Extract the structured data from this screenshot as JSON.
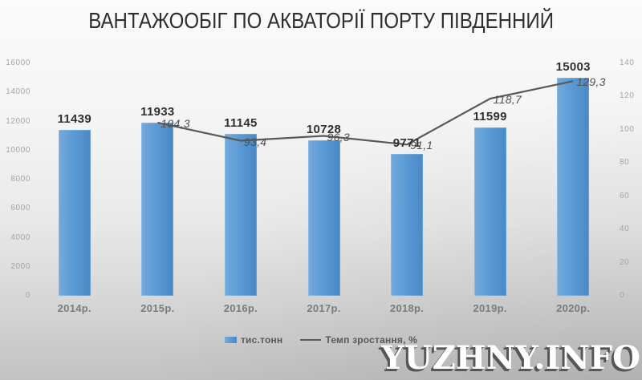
{
  "title": "ВАНТАЖООБІГ ПО АКВАТОРІЇ ПОРТУ ПІВДЕННИЙ",
  "watermark": "YUZHNY.INFO",
  "legend": {
    "bars_label": "тис.тонн",
    "line_label": "Темп зростання, %"
  },
  "colors": {
    "bar": "#5b9bd5",
    "bar_light": "#74aadc",
    "bar_dark": "#4a88c6",
    "line": "#595959",
    "bar_value_label": "#303030",
    "line_value_label": "#4f4f4f",
    "axis_tick": "#a4a4a4",
    "category_label": "#7b7b7b"
  },
  "chart_data": {
    "type": "bar",
    "subtype": "bar+line combo, secondary right axis",
    "title": "ВАНТАЖООБІГ ПО АКВАТОРІЇ ПОРТУ ПІВДЕННИЙ",
    "categories": [
      "2014р.",
      "2015р.",
      "2016р.",
      "2017р.",
      "2018р.",
      "2019р.",
      "2020р."
    ],
    "series": [
      {
        "name": "тис.тонн",
        "type": "bar",
        "axis": "left",
        "values": [
          11439,
          11933,
          11145,
          10728,
          9771,
          11599,
          15003
        ],
        "labels": [
          "11439",
          "11933",
          "11145",
          "10728",
          "9771",
          "11599",
          "15003"
        ]
      },
      {
        "name": "Темп зростання, %",
        "type": "line",
        "axis": "right",
        "values": [
          null,
          104.3,
          93.4,
          96.3,
          91.1,
          118.7,
          129.3
        ],
        "labels": [
          "",
          "104,3",
          "93,4",
          "96,3",
          "91,1",
          "118,7",
          "129,3"
        ]
      }
    ],
    "left_axis": {
      "min": 0,
      "max": 16000,
      "step": 2000,
      "ticks": [
        "0",
        "2000",
        "4000",
        "6000",
        "8000",
        "10000",
        "12000",
        "14000",
        "16000"
      ]
    },
    "right_axis": {
      "min": 0,
      "max": 140,
      "step": 20,
      "ticks": [
        "0",
        "20",
        "40",
        "60",
        "80",
        "100",
        "120",
        "140"
      ]
    },
    "grid": false,
    "legend_position": "bottom"
  }
}
